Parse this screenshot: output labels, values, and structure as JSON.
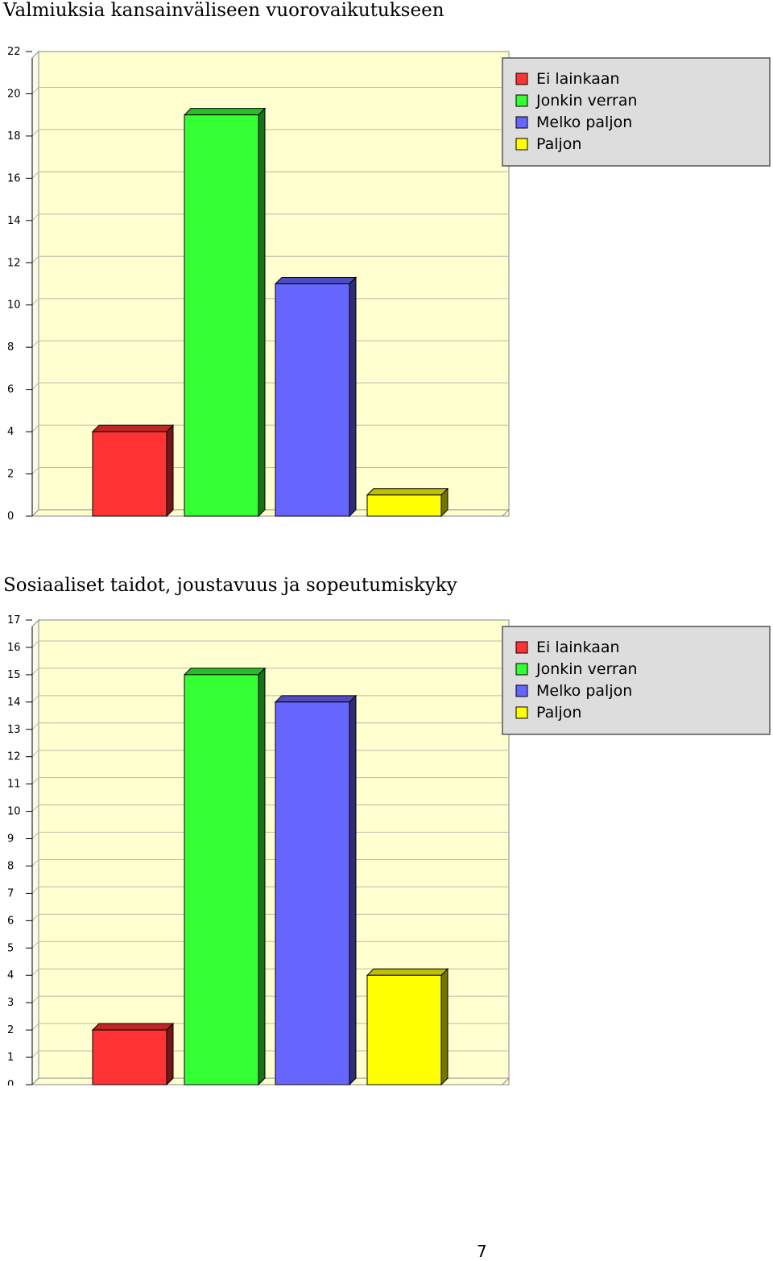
{
  "page": {
    "number": "7"
  },
  "chart_data": [
    {
      "type": "bar",
      "title": "Valmiuksia kansainväliseen vuorovaikutukseen",
      "xlabel": "",
      "ylabel": "",
      "ylim": [
        0,
        22
      ],
      "ytick_step": 2,
      "grid": true,
      "legend_position": "top-right",
      "series": [
        {
          "name": "Ei lainkaan",
          "value": 4,
          "color": "#ff3333"
        },
        {
          "name": "Jonkin verran",
          "value": 19,
          "color": "#33ff33"
        },
        {
          "name": "Melko paljon",
          "value": 11,
          "color": "#6666ff"
        },
        {
          "name": "Paljon",
          "value": 1,
          "color": "#ffff00"
        }
      ]
    },
    {
      "type": "bar",
      "title": "Sosiaaliset taidot, joustavuus ja sopeutumiskyky",
      "xlabel": "",
      "ylabel": "",
      "ylim": [
        0,
        17
      ],
      "ytick_step": 1,
      "grid": true,
      "legend_position": "top-right",
      "series": [
        {
          "name": "Ei lainkaan",
          "value": 2,
          "color": "#ff3333"
        },
        {
          "name": "Jonkin verran",
          "value": 15,
          "color": "#33ff33"
        },
        {
          "name": "Melko paljon",
          "value": 14,
          "color": "#6666ff"
        },
        {
          "name": "Paljon",
          "value": 4,
          "color": "#ffff00"
        }
      ]
    }
  ]
}
